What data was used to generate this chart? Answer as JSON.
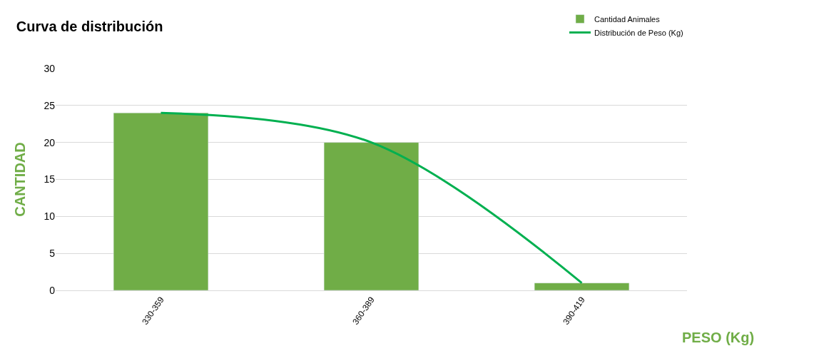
{
  "chart_data": {
    "type": "bar",
    "title": "Curva de distribución",
    "xlabel": "PESO (Kg)",
    "ylabel": "CANTIDAD",
    "categories": [
      "330-359",
      "360-389",
      "390-419"
    ],
    "series": [
      {
        "name": "Cantidad Animales",
        "color": "#70ad47",
        "values": [
          24,
          20,
          1
        ]
      },
      {
        "name": "Distribución de Peso (Kg)",
        "type": "line",
        "color": "#00b050",
        "values": [
          24,
          20,
          1
        ]
      }
    ],
    "ylim": [
      0,
      30
    ],
    "yticks": [
      0,
      5,
      10,
      15,
      20,
      25,
      30
    ],
    "grid": "y",
    "legend": "top right",
    "marker": "none",
    "line_style": "solid"
  }
}
